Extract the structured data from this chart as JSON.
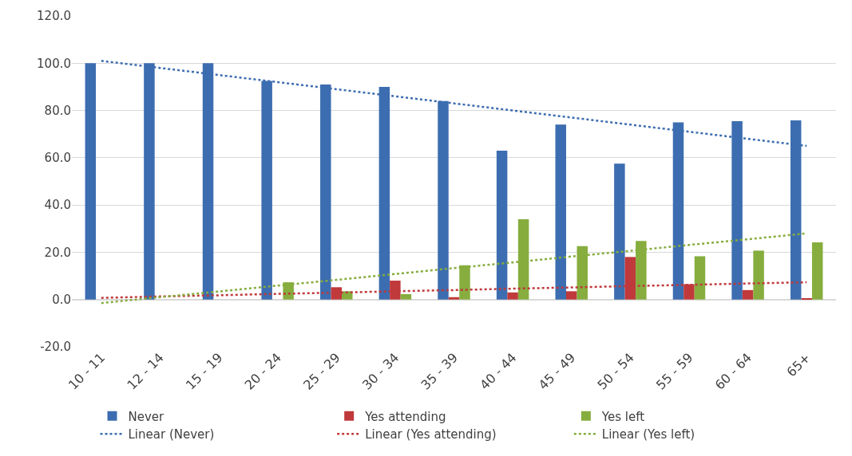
{
  "chart_data": {
    "type": "bar",
    "categories": [
      "10 - 11",
      "12 - 14",
      "15 - 19",
      "20 - 24",
      "25 - 29",
      "30 - 34",
      "35 - 39",
      "40 - 44",
      "45 - 49",
      "50 - 54",
      "55 - 59",
      "60 - 64",
      "65+"
    ],
    "series": [
      {
        "name": "Never",
        "color": "#3c6db0",
        "values": [
          100,
          100,
          100,
          92.5,
          91,
          90,
          84,
          63,
          74,
          57.5,
          75,
          75.5,
          75.8
        ]
      },
      {
        "name": "Yes attending",
        "color": "#c0393b",
        "values": [
          0,
          0,
          0,
          0,
          5.2,
          8,
          1,
          3,
          3.5,
          18,
          6.5,
          4,
          0.5
        ]
      },
      {
        "name": "Yes left",
        "color": "#86ad3e",
        "values": [
          0,
          0,
          0,
          7.3,
          3.5,
          2.3,
          14.5,
          34,
          22.6,
          24.8,
          18.3,
          20.7,
          24.2
        ]
      },
      {
        "name": "Linear (Never)",
        "type": "line",
        "line_style": "dotted",
        "color": "#3c6db0",
        "values": [
          101,
          98,
          95,
          92,
          89,
          86,
          83,
          80,
          77,
          74,
          71,
          68,
          65
        ]
      },
      {
        "name": "Linear (Yes attending)",
        "type": "line",
        "line_style": "dotted",
        "color": "#c0393b",
        "values": [
          0.7,
          1.3,
          1.8,
          2.4,
          2.9,
          3.5,
          4.0,
          4.6,
          5.1,
          5.7,
          6.2,
          6.8,
          7.3
        ]
      },
      {
        "name": "Linear (Yes left)",
        "type": "line",
        "line_style": "dotted",
        "color": "#86ad3e",
        "values": [
          -1.5,
          1.0,
          3.4,
          5.9,
          8.3,
          10.8,
          13.3,
          15.7,
          18.2,
          20.6,
          23.1,
          25.5,
          28.0
        ]
      }
    ],
    "ylim": [
      -20,
      120
    ],
    "yticks": [
      {
        "value": -20,
        "label": "-20.0"
      },
      {
        "value": 0,
        "label": "0.0"
      },
      {
        "value": 20,
        "label": "20.0"
      },
      {
        "value": 40,
        "label": "40.0"
      },
      {
        "value": 60,
        "label": "60.0"
      },
      {
        "value": 80,
        "label": "80.0"
      },
      {
        "value": 100,
        "label": "100.0"
      },
      {
        "value": 120,
        "label": "120.0"
      }
    ],
    "grid": "y",
    "legend": "bottom",
    "marker": "none"
  }
}
